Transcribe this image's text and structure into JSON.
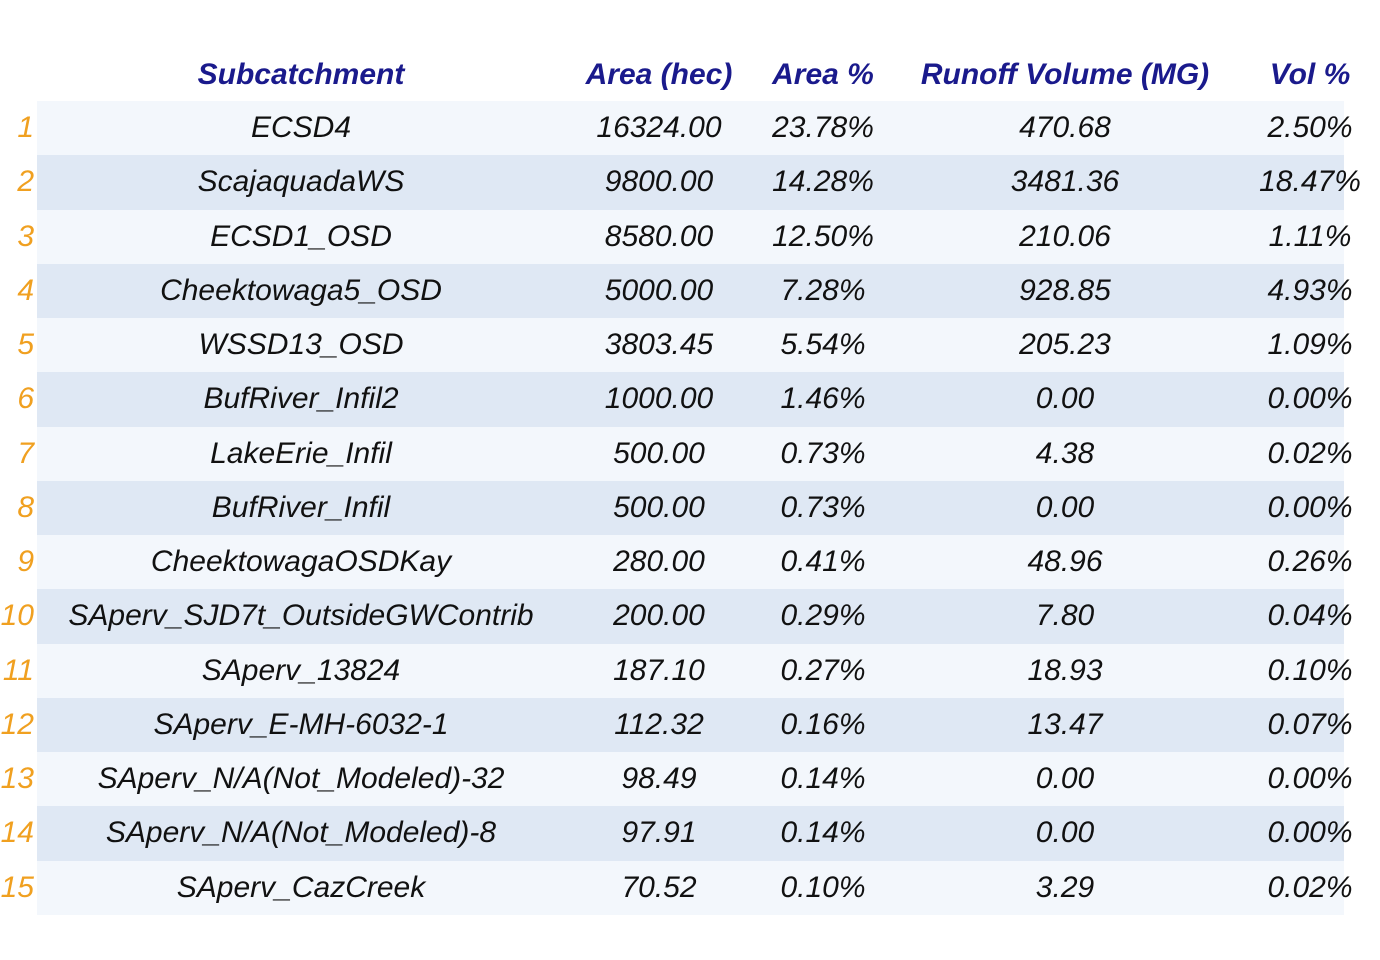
{
  "table": {
    "headers": {
      "subcatchment": "Subcatchment",
      "area": "Area (hec)",
      "area_pct": "Area %",
      "runoff_volume": "Runoff Volume (MG)",
      "vol_pct": "Vol %"
    },
    "rows": [
      {
        "index": "1",
        "name": "ECSD4",
        "area": "16324.00",
        "area_pct": "23.78%",
        "runoff_volume": "470.68",
        "vol_pct": "2.50%"
      },
      {
        "index": "2",
        "name": "ScajaquadaWS",
        "area": "9800.00",
        "area_pct": "14.28%",
        "runoff_volume": "3481.36",
        "vol_pct": "18.47%"
      },
      {
        "index": "3",
        "name": "ECSD1_OSD",
        "area": "8580.00",
        "area_pct": "12.50%",
        "runoff_volume": "210.06",
        "vol_pct": "1.11%"
      },
      {
        "index": "4",
        "name": "Cheektowaga5_OSD",
        "area": "5000.00",
        "area_pct": "7.28%",
        "runoff_volume": "928.85",
        "vol_pct": "4.93%"
      },
      {
        "index": "5",
        "name": "WSSD13_OSD",
        "area": "3803.45",
        "area_pct": "5.54%",
        "runoff_volume": "205.23",
        "vol_pct": "1.09%"
      },
      {
        "index": "6",
        "name": "BufRiver_Infil2",
        "area": "1000.00",
        "area_pct": "1.46%",
        "runoff_volume": "0.00",
        "vol_pct": "0.00%"
      },
      {
        "index": "7",
        "name": "LakeErie_Infil",
        "area": "500.00",
        "area_pct": "0.73%",
        "runoff_volume": "4.38",
        "vol_pct": "0.02%"
      },
      {
        "index": "8",
        "name": "BufRiver_Infil",
        "area": "500.00",
        "area_pct": "0.73%",
        "runoff_volume": "0.00",
        "vol_pct": "0.00%"
      },
      {
        "index": "9",
        "name": "CheektowagaOSDKay",
        "area": "280.00",
        "area_pct": "0.41%",
        "runoff_volume": "48.96",
        "vol_pct": "0.26%"
      },
      {
        "index": "10",
        "name": "SAperv_SJD7t_OutsideGWContrib",
        "area": "200.00",
        "area_pct": "0.29%",
        "runoff_volume": "7.80",
        "vol_pct": "0.04%"
      },
      {
        "index": "11",
        "name": "SAperv_13824",
        "area": "187.10",
        "area_pct": "0.27%",
        "runoff_volume": "18.93",
        "vol_pct": "0.10%"
      },
      {
        "index": "12",
        "name": "SAperv_E-MH-6032-1",
        "area": "112.32",
        "area_pct": "0.16%",
        "runoff_volume": "13.47",
        "vol_pct": "0.07%"
      },
      {
        "index": "13",
        "name": "SAperv_N/A(Not_Modeled)-32",
        "area": "98.49",
        "area_pct": "0.14%",
        "runoff_volume": "0.00",
        "vol_pct": "0.00%"
      },
      {
        "index": "14",
        "name": "SAperv_N/A(Not_Modeled)-8",
        "area": "97.91",
        "area_pct": "0.14%",
        "runoff_volume": "0.00",
        "vol_pct": "0.00%"
      },
      {
        "index": "15",
        "name": "SAperv_CazCreek",
        "area": "70.52",
        "area_pct": "0.10%",
        "runoff_volume": "3.29",
        "vol_pct": "0.02%"
      }
    ]
  },
  "colors": {
    "header_text": "#1a1a8c",
    "index_text": "#f0a020",
    "row_light": "#f3f7fc",
    "row_dark": "#dfe8f4"
  }
}
